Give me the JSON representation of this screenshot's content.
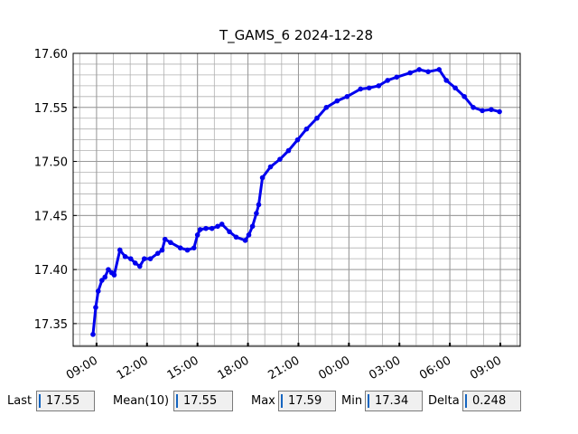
{
  "chart_data": {
    "type": "line",
    "title": "T_GAMS_6 2024-12-28",
    "x": [
      8.79,
      8.95,
      9.1,
      9.32,
      9.5,
      9.7,
      9.9,
      10.05,
      10.39,
      10.7,
      11.03,
      11.3,
      11.57,
      11.84,
      12.2,
      12.64,
      12.9,
      13.07,
      13.4,
      13.98,
      14.4,
      14.79,
      15.0,
      15.16,
      15.5,
      15.86,
      16.2,
      16.45,
      16.9,
      17.3,
      17.84,
      18.05,
      18.27,
      18.5,
      18.64,
      18.86,
      19.34,
      19.9,
      20.41,
      20.95,
      21.48,
      22.1,
      22.66,
      23.3,
      23.89,
      24.69,
      25.2,
      25.77,
      26.3,
      26.84,
      27.64,
      28.18,
      28.71,
      29.36,
      29.79,
      30.32,
      30.86,
      31.39,
      31.93,
      32.46,
      32.95
    ],
    "series": [
      {
        "name": "T_GAMS_6",
        "color": "#0000ee",
        "values": [
          17.34,
          17.365,
          17.38,
          17.39,
          17.393,
          17.4,
          17.397,
          17.395,
          17.418,
          17.412,
          17.41,
          17.406,
          17.403,
          17.41,
          17.41,
          17.415,
          17.418,
          17.428,
          17.425,
          17.42,
          17.418,
          17.42,
          17.432,
          17.437,
          17.438,
          17.438,
          17.44,
          17.442,
          17.435,
          17.43,
          17.427,
          17.432,
          17.44,
          17.452,
          17.46,
          17.485,
          17.495,
          17.502,
          17.51,
          17.52,
          17.53,
          17.54,
          17.55,
          17.556,
          17.56,
          17.567,
          17.568,
          17.57,
          17.575,
          17.578,
          17.582,
          17.585,
          17.583,
          17.585,
          17.575,
          17.568,
          17.56,
          17.55,
          17.547,
          17.548,
          17.546
        ]
      }
    ],
    "xlim": [
      7.61,
      34.18
    ],
    "xticks": [
      {
        "value": 9,
        "label": "09:00"
      },
      {
        "value": 12,
        "label": "12:00"
      },
      {
        "value": 15,
        "label": "15:00"
      },
      {
        "value": 18,
        "label": "18:00"
      },
      {
        "value": 21,
        "label": "21:00"
      },
      {
        "value": 24,
        "label": "00:00"
      },
      {
        "value": 27,
        "label": "03:00"
      },
      {
        "value": 30,
        "label": "06:00"
      },
      {
        "value": 33,
        "label": "09:00"
      }
    ],
    "ylim": [
      17.329,
      17.6
    ],
    "yticks": [
      {
        "value": 17.35,
        "label": "17.35"
      },
      {
        "value": 17.4,
        "label": "17.40"
      },
      {
        "value": 17.45,
        "label": "17.45"
      },
      {
        "value": 17.5,
        "label": "17.50"
      },
      {
        "value": 17.55,
        "label": "17.55"
      },
      {
        "value": 17.6,
        "label": "17.60"
      }
    ],
    "grid": true,
    "minor_grid": true
  },
  "status": {
    "fields": [
      {
        "label": "Last",
        "value": "17.55"
      },
      {
        "label": "Mean(10)",
        "value": "17.55"
      },
      {
        "label": "Max",
        "value": "17.59"
      },
      {
        "label": "Min",
        "value": "17.34"
      },
      {
        "label": "Delta",
        "value": "0.248"
      }
    ]
  }
}
